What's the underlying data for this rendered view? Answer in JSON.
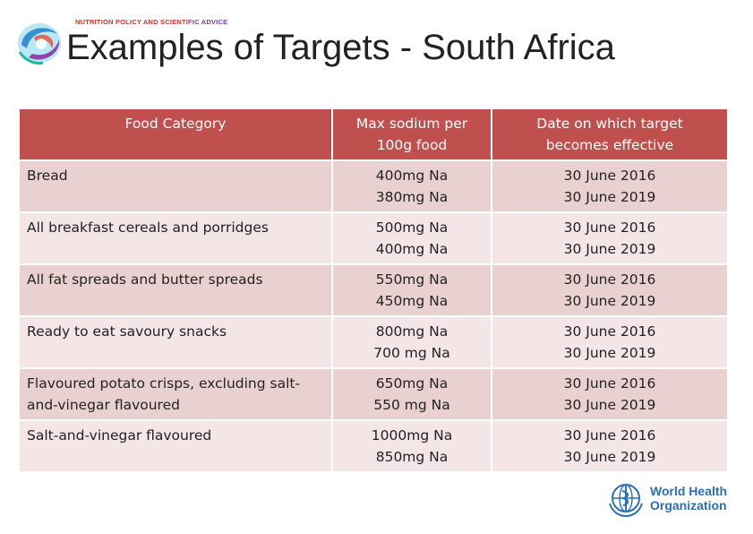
{
  "header": {
    "logo_text_red": "NUTRITION POLICY AND SCIENTI",
    "logo_text_purple": "FIC ADVICE",
    "title": "Examples of Targets - South Africa"
  },
  "table": {
    "headers": {
      "category": "Food Category",
      "sodium_line1": "Max sodium per",
      "sodium_line2": "100g food",
      "date_line1": "Date on which target",
      "date_line2": "becomes effective"
    },
    "rows": [
      {
        "category_line1": "Bread",
        "category_line2": "",
        "sodium1": "400mg Na",
        "sodium2": "380mg Na",
        "date1": "30 June 2016",
        "date2": "30 June 2019"
      },
      {
        "category_line1": "All breakfast cereals and porridges",
        "category_line2": "",
        "sodium1": "500mg Na",
        "sodium2": "400mg Na",
        "date1": "30 June 2016",
        "date2": "30 June 2019"
      },
      {
        "category_line1": "All fat spreads and butter spreads",
        "category_line2": "",
        "sodium1": "550mg Na",
        "sodium2": "450mg Na",
        "date1": "30 June 2016",
        "date2": "30 June 2019"
      },
      {
        "category_line1": "Ready to eat savoury snacks",
        "category_line2": "",
        "sodium1": "800mg Na",
        "sodium2": "700 mg Na",
        "date1": "30 June 2016",
        "date2": "30 June 2019"
      },
      {
        "category_line1": "Flavoured potato crisps, excluding salt-",
        "category_line2": "and-vinegar flavoured",
        "sodium1": "650mg Na",
        "sodium2": "550 mg Na",
        "date1": "30 June 2016",
        "date2": "30 June 2019"
      },
      {
        "category_line1": "Salt-and-vinegar flavoured",
        "category_line2": "",
        "sodium1": "1000mg Na",
        "sodium2": "850mg Na",
        "date1": "30 June 2016",
        "date2": "30 June 2019"
      }
    ]
  },
  "footer": {
    "who_line1": "World Health",
    "who_line2": "Organization"
  },
  "colors": {
    "header_bg": "#c0504d",
    "row_bg": "#ead1d1",
    "row_alt_bg": "#f4e6e6",
    "who_blue": "#2b6fb4"
  },
  "icons": {
    "logo": "nutrition-swirl-logo-icon",
    "who": "who-emblem-icon"
  }
}
